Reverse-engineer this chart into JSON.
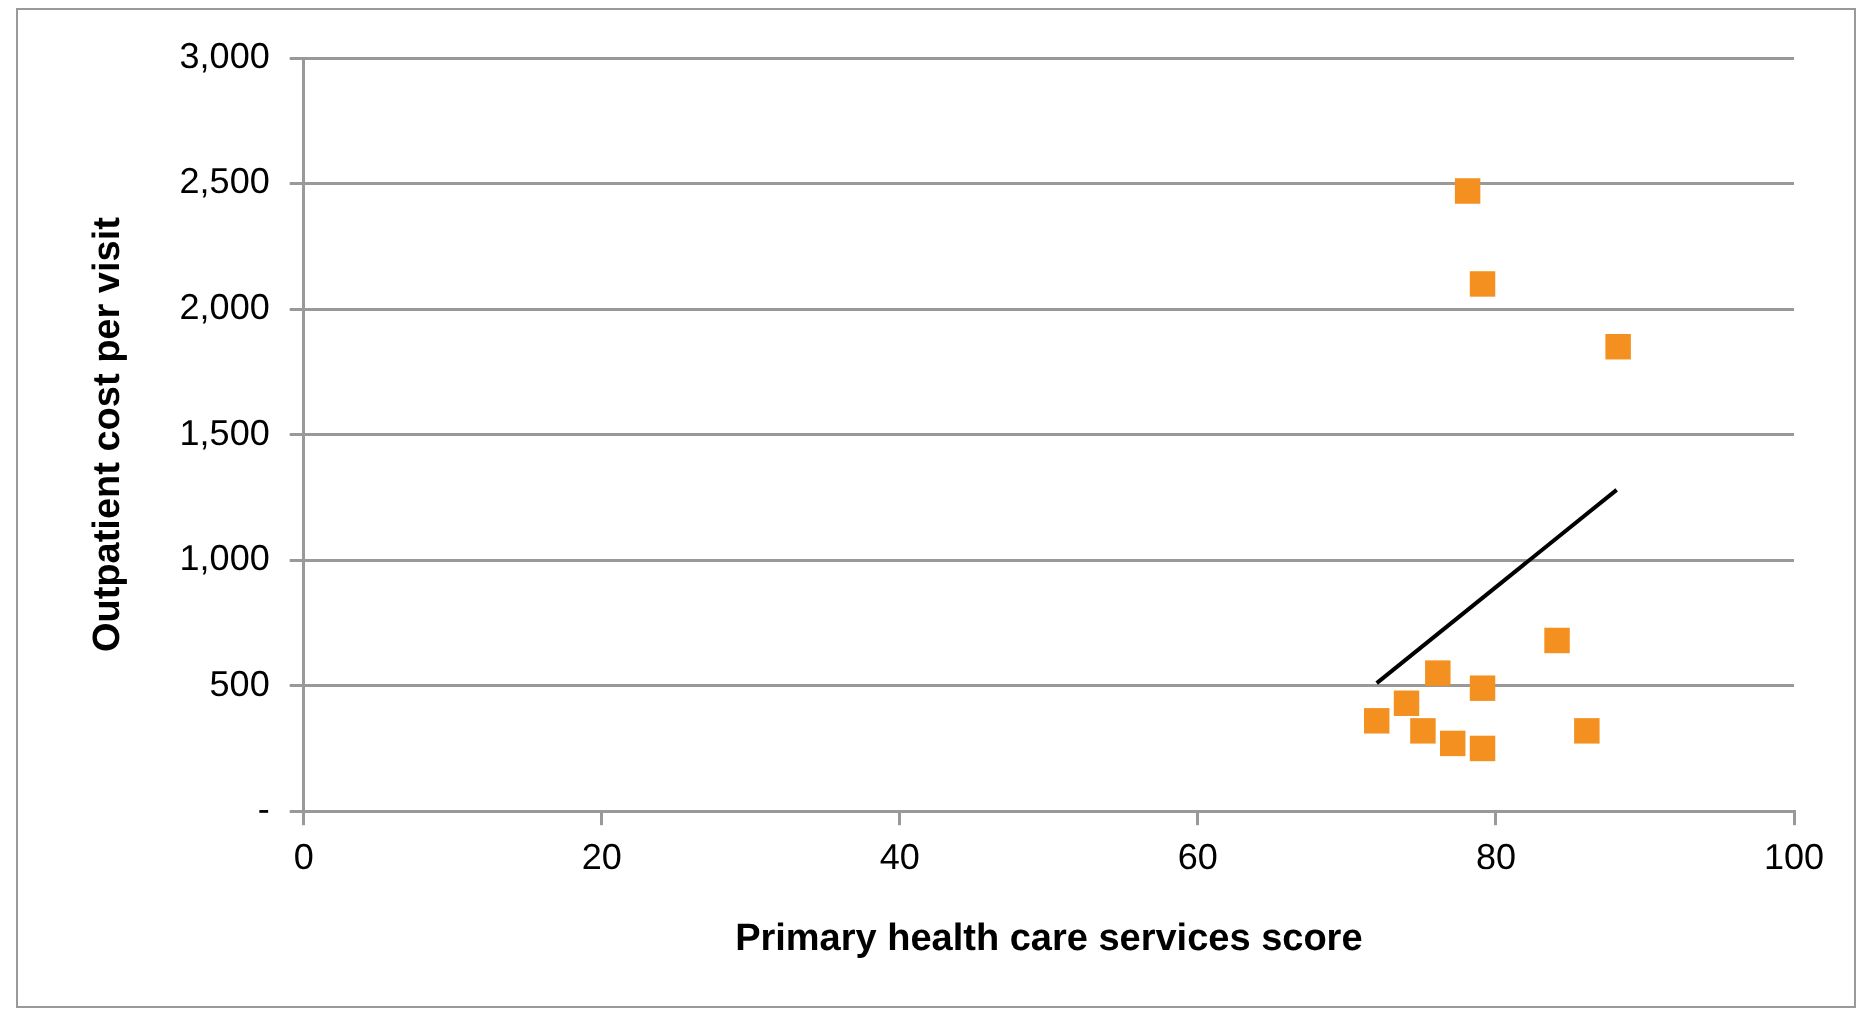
{
  "chart_data": {
    "type": "scatter",
    "xlabel": "Primary health care services score",
    "ylabel": "Outpatient cost per visit",
    "xlim": [
      0,
      100
    ],
    "xticks": [
      0,
      20,
      40,
      60,
      80,
      100
    ],
    "ylim": [
      0,
      3000
    ],
    "yticks": [
      {
        "value": 0,
        "label": "-"
      },
      {
        "value": 500,
        "label": "500"
      },
      {
        "value": 1000,
        "label": "1,000"
      },
      {
        "value": 1500,
        "label": "1,500"
      },
      {
        "value": 2000,
        "label": "2,000"
      },
      {
        "value": 2500,
        "label": "2,500"
      },
      {
        "value": 3000,
        "label": "3,000"
      }
    ],
    "grid": "y",
    "legend": false,
    "series": [
      {
        "marker": "square",
        "color": "#f39020",
        "x": [
          78.1,
          79.1,
          88.2,
          84.1,
          86.1,
          72,
          74,
          76.1,
          79.1,
          75.1,
          77.1,
          79.1
        ],
        "values": [
          2470,
          2100,
          1850,
          680,
          320,
          360,
          430,
          550,
          490,
          320,
          270,
          250
        ]
      },
      {
        "type": "line",
        "marker": "none",
        "color": "#000000",
        "x": [
          72,
          88.1
        ],
        "values": [
          510,
          1280
        ]
      }
    ]
  }
}
